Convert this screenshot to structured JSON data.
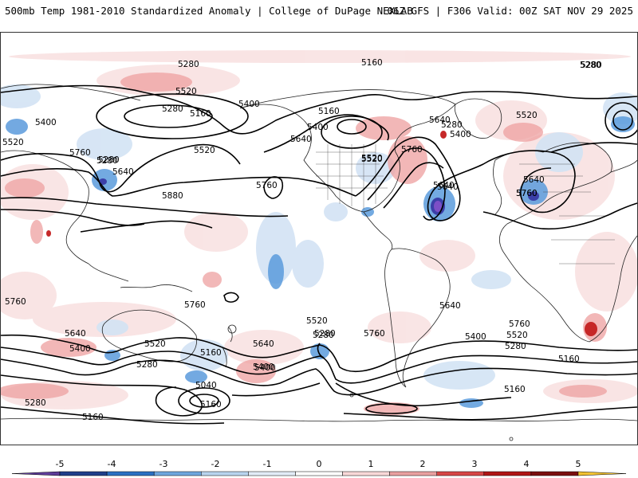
{
  "header": {
    "title": "500mb Temp 1981-2010 Standardized Anomaly | College of DuPage NEXLAB",
    "run_info": "06Z GFS | F306 Valid: 00Z SAT NOV 29 2025"
  },
  "map": {
    "contour_labels": [
      "5280",
      "5160",
      "5280",
      "5520",
      "5280",
      "5400",
      "5160",
      "5400",
      "5520",
      "5760",
      "5280",
      "5640",
      "5520",
      "5640",
      "5880",
      "5760",
      "5400",
      "5640",
      "5520",
      "5760",
      "5160",
      "5280",
      "5640",
      "5280",
      "5400",
      "5760",
      "5520",
      "5640",
      "5760",
      "5640",
      "5760",
      "5400",
      "5520",
      "5400",
      "5760",
      "5640",
      "5520",
      "5280",
      "5280",
      "5160",
      "5640",
      "5400",
      "5040",
      "5280",
      "5160",
      "5520",
      "5280",
      "5760",
      "5400",
      "5280",
      "5640",
      "5760",
      "5520",
      "5280",
      "5160",
      "5160",
      "5160"
    ],
    "anomaly_colors": {
      "strong_negative": "#6a3fb5",
      "negative": "#4a90d9",
      "weak_negative": "#c6dcf2",
      "weak_positive": "#f6d3d3",
      "positive": "#e88a8a",
      "strong_positive": "#c81e1e"
    }
  },
  "colorbar": {
    "ticks": [
      "-5",
      "-4",
      "-3",
      "-2",
      "-1",
      "0",
      "1",
      "2",
      "3",
      "4",
      "5"
    ],
    "colors": [
      "#5e3c99",
      "#1f3f8a",
      "#2b70c2",
      "#6ea6dd",
      "#b8d4ee",
      "#e2ecf7",
      "#ffffff",
      "#f8d8d8",
      "#e9a0a0",
      "#d74747",
      "#b01616",
      "#7a0f0f",
      "#f2c232"
    ]
  }
}
